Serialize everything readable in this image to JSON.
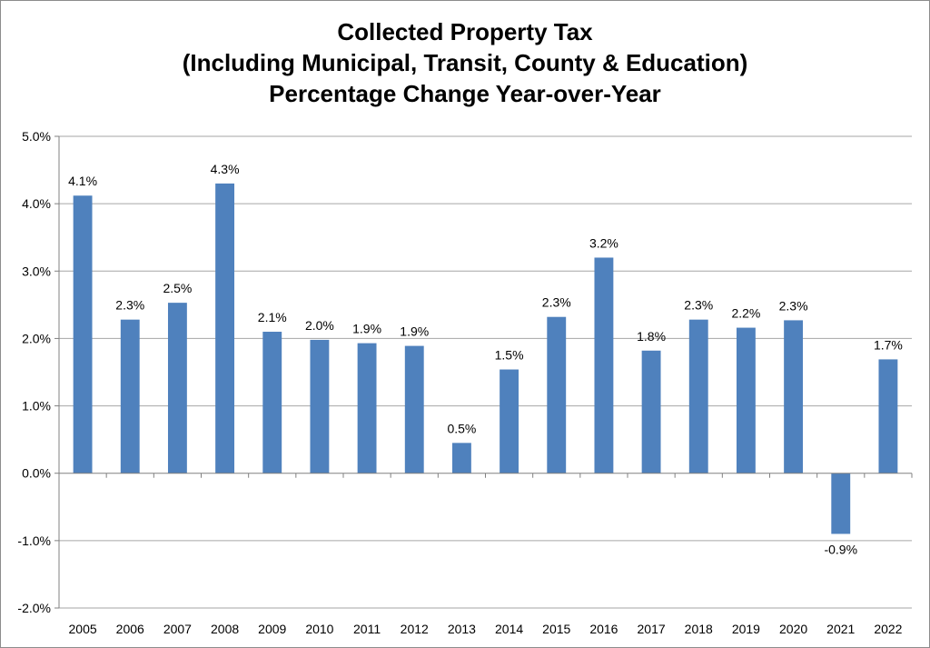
{
  "chart_data": {
    "type": "bar",
    "title_lines": [
      "Collected Property Tax",
      "(Including Municipal, Transit, County & Education)",
      "Percentage Change Year-over-Year"
    ],
    "categories": [
      "2005",
      "2006",
      "2007",
      "2008",
      "2009",
      "2010",
      "2011",
      "2012",
      "2013",
      "2014",
      "2015",
      "2016",
      "2017",
      "2018",
      "2019",
      "2020",
      "2021",
      "2022"
    ],
    "values": [
      4.12,
      2.28,
      2.53,
      4.3,
      2.1,
      1.98,
      1.93,
      1.89,
      0.45,
      1.54,
      2.32,
      3.2,
      1.82,
      2.28,
      2.16,
      2.27,
      -0.9,
      1.69
    ],
    "data_labels": [
      "4.1%",
      "2.3%",
      "2.5%",
      "4.3%",
      "2.1%",
      "2.0%",
      "1.9%",
      "1.9%",
      "0.5%",
      "1.5%",
      "2.3%",
      "3.2%",
      "1.8%",
      "2.3%",
      "2.2%",
      "2.3%",
      "-0.9%",
      "1.7%"
    ],
    "ylim": [
      -2.0,
      5.0
    ],
    "yticks": [
      5.0,
      4.0,
      3.0,
      2.0,
      1.0,
      0.0,
      -1.0,
      -2.0
    ],
    "ytick_labels": [
      "5.0%",
      "4.0%",
      "3.0%",
      "2.0%",
      "1.0%",
      "0.0%",
      "-1.0%",
      "-2.0%"
    ],
    "grid": true,
    "legend": "none",
    "bar_color": "#4f81bd",
    "grid_color": "#a6a6a6"
  }
}
